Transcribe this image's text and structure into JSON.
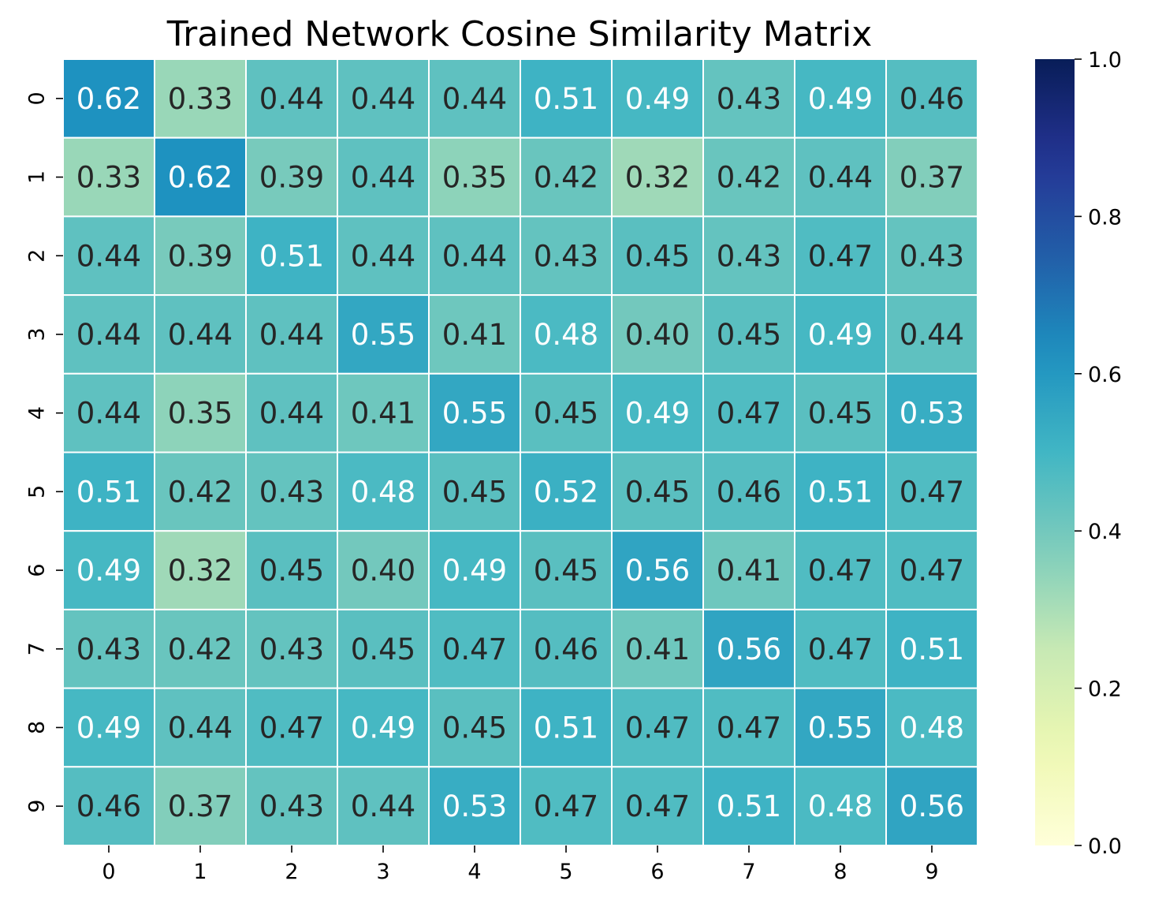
{
  "chart_data": {
    "type": "heatmap",
    "title": "Trained Network Cosine Similarity Matrix",
    "xlabel": "",
    "ylabel": "",
    "x_ticks": [
      "0",
      "1",
      "2",
      "3",
      "4",
      "5",
      "6",
      "7",
      "8",
      "9"
    ],
    "y_ticks": [
      "0",
      "1",
      "2",
      "3",
      "4",
      "5",
      "6",
      "7",
      "8",
      "9"
    ],
    "values": [
      [
        0.62,
        0.33,
        0.44,
        0.44,
        0.44,
        0.51,
        0.49,
        0.43,
        0.49,
        0.46
      ],
      [
        0.33,
        0.62,
        0.39,
        0.44,
        0.35,
        0.42,
        0.32,
        0.42,
        0.44,
        0.37
      ],
      [
        0.44,
        0.39,
        0.51,
        0.44,
        0.44,
        0.43,
        0.45,
        0.43,
        0.47,
        0.43
      ],
      [
        0.44,
        0.44,
        0.44,
        0.55,
        0.41,
        0.48,
        0.4,
        0.45,
        0.49,
        0.44
      ],
      [
        0.44,
        0.35,
        0.44,
        0.41,
        0.55,
        0.45,
        0.49,
        0.47,
        0.45,
        0.53
      ],
      [
        0.51,
        0.42,
        0.43,
        0.48,
        0.45,
        0.52,
        0.45,
        0.46,
        0.51,
        0.47
      ],
      [
        0.49,
        0.32,
        0.45,
        0.4,
        0.49,
        0.45,
        0.56,
        0.41,
        0.47,
        0.47
      ],
      [
        0.43,
        0.42,
        0.43,
        0.45,
        0.47,
        0.46,
        0.41,
        0.56,
        0.47,
        0.51
      ],
      [
        0.49,
        0.44,
        0.47,
        0.49,
        0.45,
        0.51,
        0.47,
        0.47,
        0.55,
        0.48
      ],
      [
        0.46,
        0.37,
        0.43,
        0.44,
        0.53,
        0.47,
        0.47,
        0.51,
        0.48,
        0.56
      ]
    ],
    "colormap": "YlGnBu",
    "vmin": 0.0,
    "vmax": 1.0,
    "colorbar_ticks": [
      "0.0",
      "0.2",
      "0.4",
      "0.6",
      "0.8",
      "1.0"
    ],
    "annotations": true,
    "cell_separator_color": "#ffffff",
    "annotation_colors": {
      "dark": "#262626",
      "light": "#ffffff"
    }
  }
}
